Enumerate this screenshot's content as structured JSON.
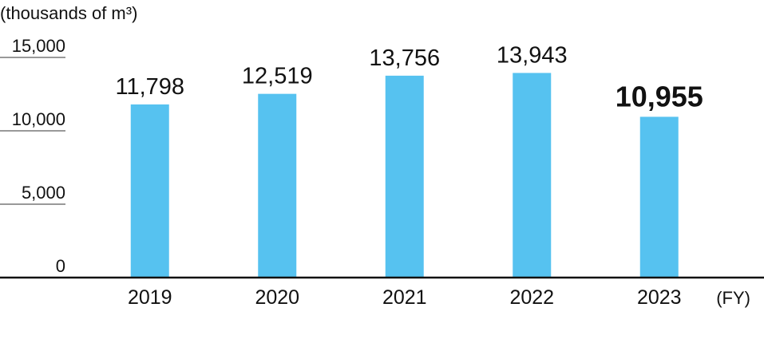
{
  "chart_data": {
    "type": "bar",
    "y_label": "(thousands of m³)",
    "x_label": "(FY)",
    "categories": [
      "2019",
      "2020",
      "2021",
      "2022",
      "2023"
    ],
    "values": [
      11798,
      12519,
      13756,
      13943,
      10955
    ],
    "value_labels": [
      "11,798",
      "12,519",
      "13,756",
      "13,943",
      "10,955"
    ],
    "color": "#56c2f0",
    "ylim": [
      0,
      15000
    ],
    "yticks": [
      0,
      {
        "value": 5000,
        "label": "5,000"
      },
      {
        "value": 10000,
        "label": "10,000"
      },
      {
        "value": 15000,
        "label": "15,000"
      }
    ]
  }
}
